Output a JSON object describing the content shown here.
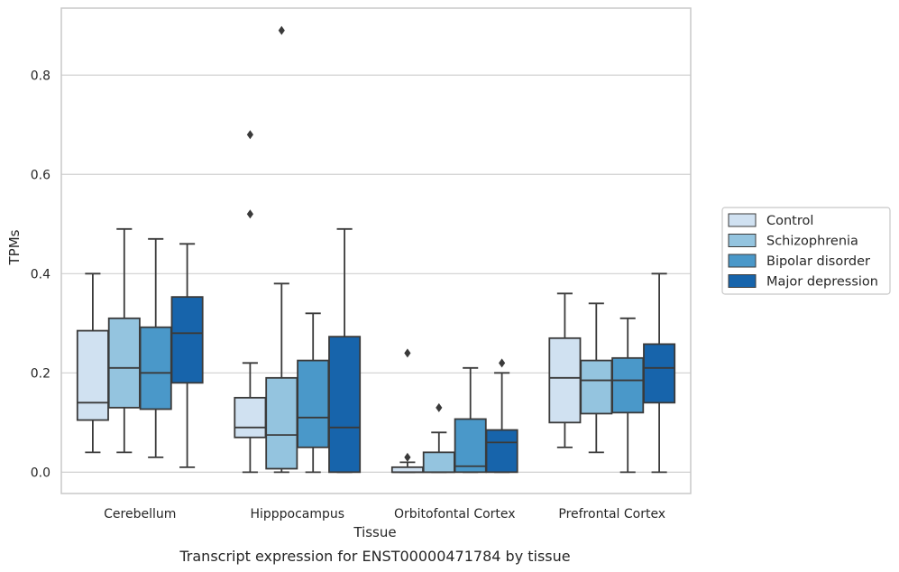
{
  "chart_data": {
    "type": "boxplot",
    "title": "",
    "caption": "Transcript expression for ENST00000471784 by tissue",
    "xlabel": "Tissue",
    "ylabel": "TPMs",
    "ylim": [
      -0.043,
      0.935
    ],
    "yticks": [
      0.0,
      0.2,
      0.4,
      0.6,
      0.8
    ],
    "ytick_labels": [
      "0.0",
      "0.2",
      "0.4",
      "0.6",
      "0.8"
    ],
    "grid": "horizontal",
    "legend_position": "right",
    "categories": [
      "Cerebellum",
      "Hipppocampus",
      "Orbitofontal Cortex",
      "Prefrontal Cortex"
    ],
    "series": [
      {
        "name": "Control",
        "color": "#d0e1f1",
        "boxes": [
          {
            "whislo": 0.04,
            "q1": 0.105,
            "med": 0.14,
            "q3": 0.285,
            "whishi": 0.4,
            "fliers": []
          },
          {
            "whislo": 0.0,
            "q1": 0.07,
            "med": 0.09,
            "q3": 0.15,
            "whishi": 0.22,
            "fliers": [
              0.52,
              0.68
            ]
          },
          {
            "whislo": 0.0,
            "q1": 0.0,
            "med": 0.0,
            "q3": 0.01,
            "whishi": 0.02,
            "fliers": [
              0.03,
              0.24
            ]
          },
          {
            "whislo": 0.05,
            "q1": 0.1,
            "med": 0.19,
            "q3": 0.27,
            "whishi": 0.36,
            "fliers": []
          }
        ]
      },
      {
        "name": "Schizophrenia",
        "color": "#94c4df",
        "boxes": [
          {
            "whislo": 0.04,
            "q1": 0.13,
            "med": 0.21,
            "q3": 0.31,
            "whishi": 0.49,
            "fliers": []
          },
          {
            "whislo": 0.0,
            "q1": 0.007,
            "med": 0.075,
            "q3": 0.19,
            "whishi": 0.38,
            "fliers": [
              0.89
            ]
          },
          {
            "whislo": 0.0,
            "q1": 0.0,
            "med": 0.0,
            "q3": 0.04,
            "whishi": 0.08,
            "fliers": [
              0.13
            ]
          },
          {
            "whislo": 0.04,
            "q1": 0.118,
            "med": 0.185,
            "q3": 0.225,
            "whishi": 0.34,
            "fliers": []
          }
        ]
      },
      {
        "name": "Bipolar disorder",
        "color": "#4a98c9",
        "boxes": [
          {
            "whislo": 0.03,
            "q1": 0.127,
            "med": 0.2,
            "q3": 0.292,
            "whishi": 0.47,
            "fliers": []
          },
          {
            "whislo": 0.0,
            "q1": 0.05,
            "med": 0.11,
            "q3": 0.225,
            "whishi": 0.32,
            "fliers": []
          },
          {
            "whislo": 0.0,
            "q1": 0.0,
            "med": 0.012,
            "q3": 0.107,
            "whishi": 0.21,
            "fliers": []
          },
          {
            "whislo": 0.0,
            "q1": 0.12,
            "med": 0.185,
            "q3": 0.23,
            "whishi": 0.31,
            "fliers": []
          }
        ]
      },
      {
        "name": "Major depression",
        "color": "#1764ab",
        "boxes": [
          {
            "whislo": 0.01,
            "q1": 0.18,
            "med": 0.28,
            "q3": 0.353,
            "whishi": 0.46,
            "fliers": []
          },
          {
            "whislo": 0.0,
            "q1": 0.0,
            "med": 0.09,
            "q3": 0.273,
            "whishi": 0.49,
            "fliers": []
          },
          {
            "whislo": 0.0,
            "q1": 0.0,
            "med": 0.06,
            "q3": 0.085,
            "whishi": 0.2,
            "fliers": [
              0.22
            ]
          },
          {
            "whislo": 0.0,
            "q1": 0.14,
            "med": 0.21,
            "q3": 0.258,
            "whishi": 0.4,
            "fliers": []
          }
        ]
      }
    ],
    "colors": {
      "edge": "#3a3a3a",
      "grid": "#d0d0d0",
      "frame": "#c8c8c8",
      "legend_frame": "#c8c8c8"
    }
  }
}
